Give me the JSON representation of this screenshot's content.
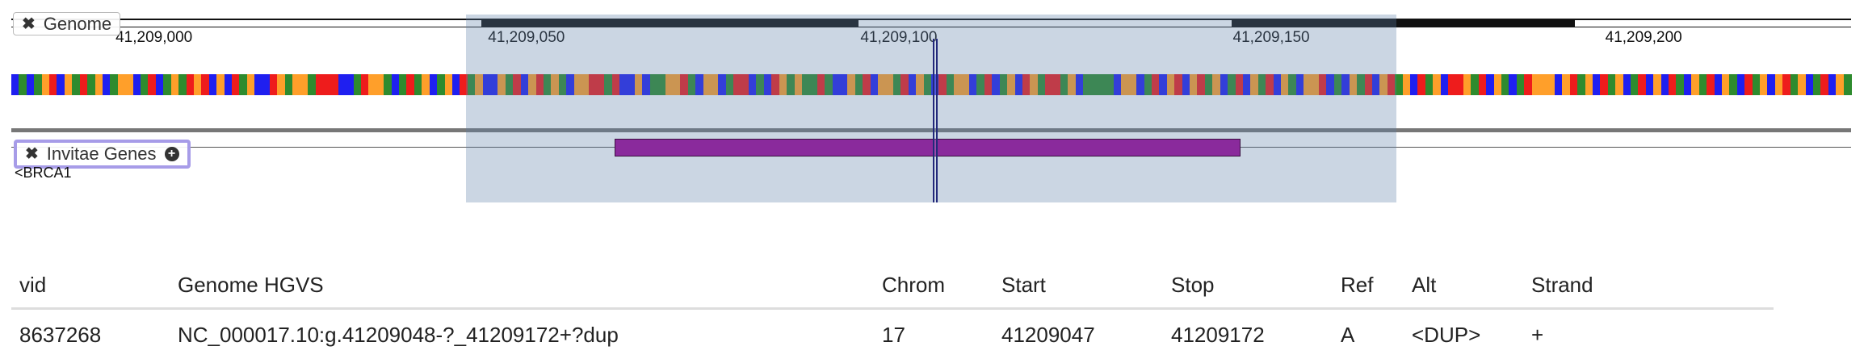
{
  "genome_track": {
    "label": "Genome"
  },
  "ruler": {
    "ticks": [
      {
        "label": "41,209,000",
        "position": 41209000
      },
      {
        "label": "41,209,050",
        "position": 41209050
      },
      {
        "label": "41,209,100",
        "position": 41209100
      },
      {
        "label": "41,209,150",
        "position": 41209150
      },
      {
        "label": "41,209,200",
        "position": 41209200
      }
    ]
  },
  "view": {
    "start": 41208986,
    "end": 41209233
  },
  "selection": {
    "start": 41209047,
    "end": 41209172
  },
  "cursor_position": 41209110,
  "gene_feature": {
    "start": 41209067,
    "end": 41209151
  },
  "gene_track": {
    "label": "Invitae Genes",
    "gene_name": "<BRCA1"
  },
  "colors": {
    "A": "#2e8b2e",
    "C": "#1f1ff0",
    "G": "#ff9f2a",
    "T": "#ee1c1c",
    "highlight": "#5e80a8",
    "gene_bar": "#8a2a9c",
    "selected_track_border": "#a79ce8"
  },
  "sequence": "CACAGTCGATAGCAGGCATCAGATGTCGCTAGCCTGAGGATTTCCATGGACATAGCAGCTAGCCGATCGTAGACGGTTATCCGCAAGGTACGGCATTCACTGAGAATACCGATCGGATCGACTAGGCATCAGCTGATTAGCAAAACGGCATCGTCGTAGCATCGATCGACGGTCACGATCGTAGCTAGCTTGATCGACATGGGCGTAGCTAGCATCGCTACGATCGACTAGCGTAGCATCGA",
  "variants_table": {
    "columns": [
      "vid",
      "Genome HGVS",
      "Chrom",
      "Start",
      "Stop",
      "Ref",
      "Alt",
      "Strand"
    ],
    "rows": [
      [
        "8637268",
        "NC_000017.10:g.41209048-?_41209172+?dup",
        "17",
        "41209047",
        "41209172",
        "A",
        "<DUP>",
        "+"
      ]
    ]
  }
}
